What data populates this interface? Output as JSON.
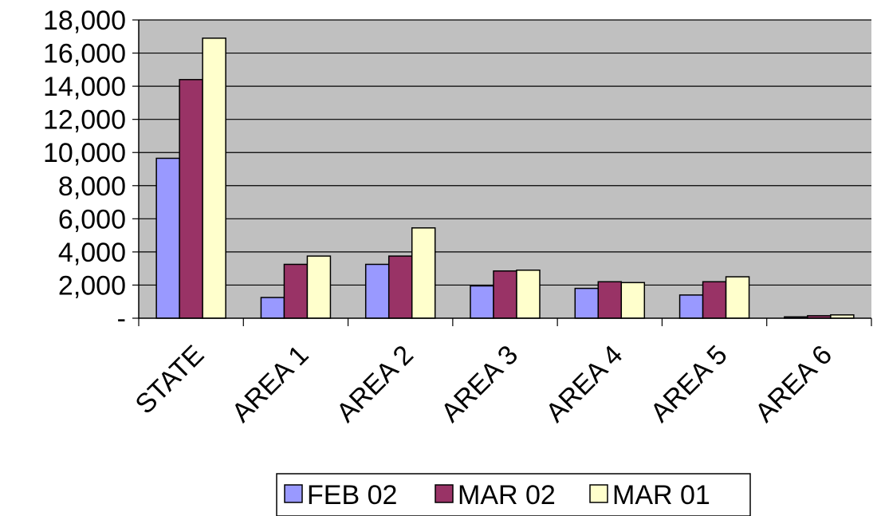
{
  "chart_data": {
    "type": "bar",
    "title": "",
    "xlabel": "",
    "ylabel": "",
    "categories": [
      "STATE",
      "AREA 1",
      "AREA 2",
      "AREA 3",
      "AREA 4",
      "AREA 5",
      "AREA 6"
    ],
    "series": [
      {
        "name": "FEB 02",
        "values": [
          9650,
          1250,
          3250,
          1950,
          1800,
          1400,
          80
        ],
        "color": "#9999FF"
      },
      {
        "name": "MAR 02",
        "values": [
          14400,
          3250,
          3750,
          2850,
          2200,
          2200,
          150
        ],
        "color": "#993366"
      },
      {
        "name": "MAR 01",
        "values": [
          16900,
          3750,
          5450,
          2900,
          2150,
          2500,
          200
        ],
        "color": "#FFFFCC"
      }
    ],
    "ylim": [
      0,
      18000
    ],
    "yticks": [
      0,
      2000,
      4000,
      6000,
      8000,
      10000,
      12000,
      14000,
      16000,
      18000
    ],
    "ytick_labels": [
      "-",
      "2,000",
      "4,000",
      "6,000",
      "8,000",
      "10,000",
      "12,000",
      "14,000",
      "16,000",
      "18,000"
    ],
    "grid": true,
    "plot_background": "#C0C0C0",
    "legend_position": "bottom"
  }
}
